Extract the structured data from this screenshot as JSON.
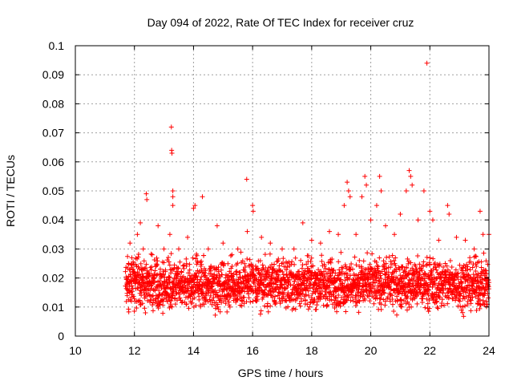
{
  "chart_data": {
    "type": "scatter",
    "title": "Day 094 of 2022, Rate Of TEC Index for receiver cruz",
    "xlabel": "GPS time / hours",
    "ylabel": "ROTI / TECUs",
    "xlim": [
      10,
      24
    ],
    "ylim": [
      0,
      0.1
    ],
    "xticks": [
      10,
      12,
      14,
      16,
      18,
      20,
      22,
      24
    ],
    "yticks": [
      0,
      0.01,
      0.02,
      0.03,
      0.04,
      0.05,
      0.06,
      0.07,
      0.08,
      0.09,
      0.1
    ],
    "grid": true,
    "marker": "+",
    "color": "#ff0000",
    "series": [
      {
        "values_summary": "dense band of ROTI points between ~11.7 h and 24 h, mostly 0.005 to 0.035 TECU/min",
        "points": [
          [
            11.75,
            0.018
          ],
          [
            11.8,
            0.025
          ],
          [
            11.85,
            0.032
          ],
          [
            11.9,
            0.012
          ],
          [
            12.0,
            0.022
          ],
          [
            12.1,
            0.035
          ],
          [
            12.2,
            0.039
          ],
          [
            12.3,
            0.03
          ],
          [
            12.4,
            0.049
          ],
          [
            12.42,
            0.047
          ],
          [
            12.6,
            0.028
          ],
          [
            12.8,
            0.038
          ],
          [
            13.0,
            0.03
          ],
          [
            13.2,
            0.035
          ],
          [
            13.25,
            0.072
          ],
          [
            13.26,
            0.064
          ],
          [
            13.27,
            0.063
          ],
          [
            13.3,
            0.05
          ],
          [
            13.3,
            0.048
          ],
          [
            13.3,
            0.045
          ],
          [
            13.5,
            0.03
          ],
          [
            13.8,
            0.034
          ],
          [
            14.0,
            0.044
          ],
          [
            14.05,
            0.045
          ],
          [
            14.3,
            0.048
          ],
          [
            14.5,
            0.03
          ],
          [
            14.8,
            0.038
          ],
          [
            15.0,
            0.032
          ],
          [
            15.3,
            0.028
          ],
          [
            15.5,
            0.03
          ],
          [
            15.8,
            0.054
          ],
          [
            15.82,
            0.036
          ],
          [
            16.0,
            0.045
          ],
          [
            16.02,
            0.043
          ],
          [
            16.3,
            0.034
          ],
          [
            16.6,
            0.032
          ],
          [
            17.0,
            0.03
          ],
          [
            17.4,
            0.03
          ],
          [
            17.7,
            0.039
          ],
          [
            18.0,
            0.033
          ],
          [
            18.3,
            0.032
          ],
          [
            18.6,
            0.036
          ],
          [
            18.9,
            0.035
          ],
          [
            19.1,
            0.045
          ],
          [
            19.2,
            0.053
          ],
          [
            19.25,
            0.05
          ],
          [
            19.3,
            0.048
          ],
          [
            19.5,
            0.035
          ],
          [
            19.7,
            0.048
          ],
          [
            19.8,
            0.055
          ],
          [
            19.85,
            0.052
          ],
          [
            20.0,
            0.04
          ],
          [
            20.2,
            0.045
          ],
          [
            20.3,
            0.055
          ],
          [
            20.35,
            0.05
          ],
          [
            20.5,
            0.038
          ],
          [
            20.8,
            0.035
          ],
          [
            21.0,
            0.042
          ],
          [
            21.2,
            0.05
          ],
          [
            21.3,
            0.057
          ],
          [
            21.35,
            0.055
          ],
          [
            21.4,
            0.052
          ],
          [
            21.6,
            0.04
          ],
          [
            21.8,
            0.05
          ],
          [
            21.9,
            0.094
          ],
          [
            22.0,
            0.043
          ],
          [
            22.1,
            0.04
          ],
          [
            22.3,
            0.033
          ],
          [
            22.6,
            0.045
          ],
          [
            22.65,
            0.042
          ],
          [
            22.9,
            0.034
          ],
          [
            23.2,
            0.033
          ],
          [
            23.5,
            0.03
          ],
          [
            23.7,
            0.043
          ],
          [
            23.8,
            0.035
          ],
          [
            24.0,
            0.035
          ]
        ],
        "band": {
          "x_start": 11.7,
          "x_end": 24.0,
          "y_low": 0.006,
          "y_high": 0.03,
          "y_center": 0.018
        }
      }
    ]
  }
}
